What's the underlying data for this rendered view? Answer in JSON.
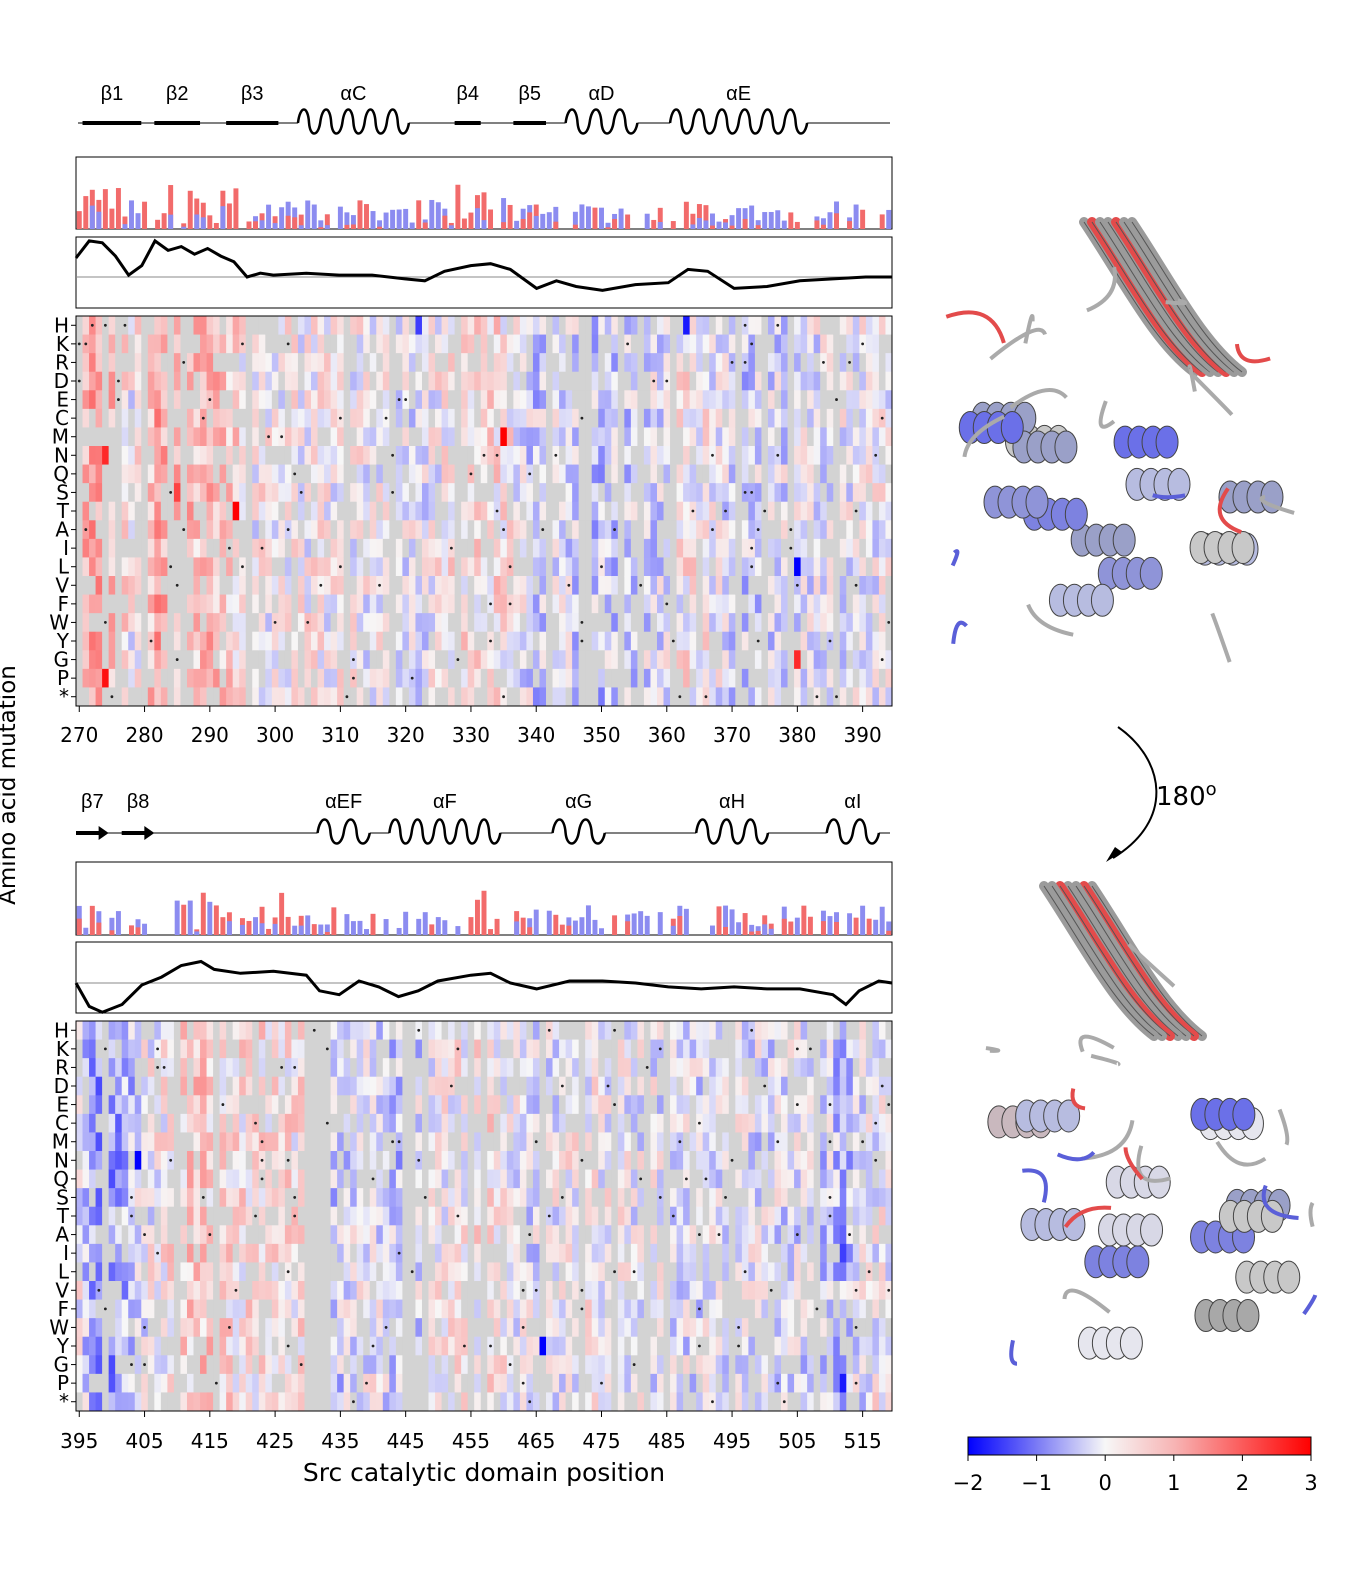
{
  "chart_data": [
    {
      "type": "heatmap",
      "panel": "top",
      "x_min": 270,
      "x_max": 394,
      "xticks": [
        270,
        280,
        290,
        300,
        310,
        320,
        330,
        340,
        350,
        360,
        370,
        380,
        390
      ],
      "yticklabels": [
        "H",
        "K",
        "R",
        "D",
        "E",
        "C",
        "M",
        "N",
        "Q",
        "S",
        "T",
        "A",
        "I",
        "L",
        "V",
        "F",
        "W",
        "Y",
        "G",
        "P",
        "*"
      ],
      "secondary_structure": [
        {
          "label": "β1",
          "type": "strand",
          "start": 271,
          "end": 279
        },
        {
          "label": "β2",
          "type": "strand",
          "start": 282,
          "end": 288
        },
        {
          "label": "β3",
          "type": "strand",
          "start": 293,
          "end": 300
        },
        {
          "label": "αC",
          "type": "helix",
          "start": 304,
          "end": 320
        },
        {
          "label": "β4",
          "type": "strand",
          "start": 328,
          "end": 331
        },
        {
          "label": "β5",
          "type": "strand",
          "start": 337,
          "end": 341
        },
        {
          "label": "αD",
          "type": "helix",
          "start": 345,
          "end": 355
        },
        {
          "label": "αE",
          "type": "helix",
          "start": 361,
          "end": 381
        }
      ],
      "hydrophobicity_track": [
        [
          270,
          0.5
        ],
        [
          272,
          0.95
        ],
        [
          274,
          0.9
        ],
        [
          276,
          0.55
        ],
        [
          278,
          0.05
        ],
        [
          280,
          0.3
        ],
        [
          282,
          0.95
        ],
        [
          284,
          0.7
        ],
        [
          286,
          0.8
        ],
        [
          288,
          0.6
        ],
        [
          290,
          0.75
        ],
        [
          292,
          0.55
        ],
        [
          294,
          0.4
        ],
        [
          296,
          0.0
        ],
        [
          298,
          0.1
        ],
        [
          300,
          0.05
        ],
        [
          305,
          0.1
        ],
        [
          310,
          0.05
        ],
        [
          315,
          0.05
        ],
        [
          320,
          -0.05
        ],
        [
          323,
          -0.1
        ],
        [
          326,
          0.15
        ],
        [
          330,
          0.3
        ],
        [
          333,
          0.35
        ],
        [
          336,
          0.2
        ],
        [
          340,
          -0.3
        ],
        [
          343,
          -0.1
        ],
        [
          346,
          -0.25
        ],
        [
          350,
          -0.35
        ],
        [
          355,
          -0.2
        ],
        [
          360,
          -0.15
        ],
        [
          363,
          0.2
        ],
        [
          366,
          0.15
        ],
        [
          370,
          -0.3
        ],
        [
          375,
          -0.25
        ],
        [
          380,
          -0.1
        ],
        [
          385,
          -0.05
        ],
        [
          390,
          0.0
        ],
        [
          394,
          0.0
        ]
      ],
      "special_cells": [
        {
          "x": 335,
          "mutation": "M",
          "value": 3.0
        },
        {
          "x": 294,
          "mutation": "T",
          "value": 3.0
        },
        {
          "x": 274,
          "mutation": "P",
          "value": 2.8
        },
        {
          "x": 274,
          "mutation": "N",
          "value": 2.5
        },
        {
          "x": 285,
          "mutation": "S",
          "value": 2.2
        },
        {
          "x": 380,
          "mutation": "L",
          "value": -2.0
        },
        {
          "x": 380,
          "mutation": "G",
          "value": 2.5
        },
        {
          "x": 322,
          "mutation": "H",
          "value": -1.5
        },
        {
          "x": 363,
          "mutation": "H",
          "value": -1.8
        }
      ]
    },
    {
      "type": "heatmap",
      "panel": "bottom",
      "x_min": 395,
      "x_max": 519,
      "xticks": [
        395,
        405,
        415,
        425,
        435,
        445,
        455,
        465,
        475,
        485,
        495,
        505,
        515
      ],
      "yticklabels": [
        "H",
        "K",
        "R",
        "D",
        "E",
        "C",
        "M",
        "N",
        "Q",
        "S",
        "T",
        "A",
        "I",
        "L",
        "V",
        "F",
        "W",
        "Y",
        "G",
        "P",
        "*"
      ],
      "secondary_structure": [
        {
          "label": "β7",
          "type": "arrow",
          "start": 395,
          "end": 399
        },
        {
          "label": "β8",
          "type": "arrow",
          "start": 402,
          "end": 406
        },
        {
          "label": "αEF",
          "type": "helix",
          "start": 432,
          "end": 439
        },
        {
          "label": "αF",
          "type": "helix",
          "start": 443,
          "end": 459
        },
        {
          "label": "αG",
          "type": "helix",
          "start": 468,
          "end": 475
        },
        {
          "label": "αH",
          "type": "helix",
          "start": 490,
          "end": 500
        },
        {
          "label": "αI",
          "type": "helix",
          "start": 510,
          "end": 517
        }
      ],
      "hydrophobicity_track": [
        [
          395,
          0.0
        ],
        [
          397,
          -0.6
        ],
        [
          399,
          -0.75
        ],
        [
          402,
          -0.55
        ],
        [
          405,
          -0.05
        ],
        [
          408,
          0.15
        ],
        [
          411,
          0.45
        ],
        [
          414,
          0.55
        ],
        [
          416,
          0.35
        ],
        [
          420,
          0.25
        ],
        [
          425,
          0.3
        ],
        [
          430,
          0.2
        ],
        [
          432,
          -0.2
        ],
        [
          435,
          -0.3
        ],
        [
          438,
          0.05
        ],
        [
          441,
          -0.1
        ],
        [
          444,
          -0.35
        ],
        [
          447,
          -0.2
        ],
        [
          450,
          0.05
        ],
        [
          455,
          0.2
        ],
        [
          458,
          0.25
        ],
        [
          461,
          0.0
        ],
        [
          465,
          -0.15
        ],
        [
          470,
          0.05
        ],
        [
          475,
          0.05
        ],
        [
          480,
          0.0
        ],
        [
          485,
          -0.1
        ],
        [
          490,
          -0.15
        ],
        [
          495,
          -0.1
        ],
        [
          500,
          -0.15
        ],
        [
          505,
          -0.15
        ],
        [
          510,
          -0.3
        ],
        [
          512,
          -0.55
        ],
        [
          514,
          -0.2
        ],
        [
          517,
          0.05
        ],
        [
          519,
          0.0
        ]
      ],
      "special_cells": [
        {
          "x": 466,
          "mutation": "Y",
          "value": -2.0
        },
        {
          "x": 404,
          "mutation": "N",
          "value": -2.0
        },
        {
          "x": 512,
          "mutation": "P",
          "value": -1.8
        },
        {
          "x": 512,
          "mutation": "I",
          "value": -1.5
        }
      ]
    }
  ],
  "colorbar": {
    "min": -2,
    "max": 3,
    "ticks": [
      "−2",
      "−1",
      "0",
      "1",
      "2",
      "3"
    ],
    "low_color": "#0000ff",
    "mid_color": "#f7f7f7",
    "high_color": "#ff0000"
  },
  "axes": {
    "ylabel": "Amino acid mutation",
    "xlabel": "Src catalytic domain position"
  },
  "rotation_label": "180",
  "rotation_sup": "o",
  "colors": {
    "missing": "#d3d3d3",
    "positive_bar": "#f26b6b",
    "negative_bar": "#8c8cf0"
  }
}
